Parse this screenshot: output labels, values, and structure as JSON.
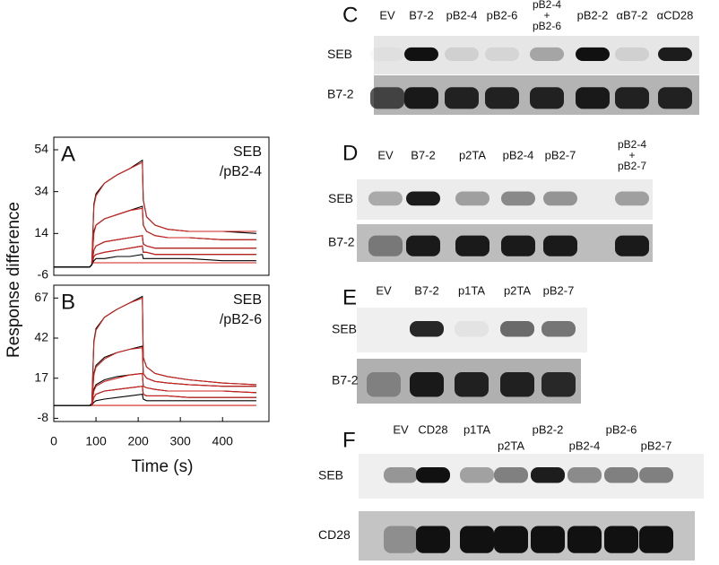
{
  "chart_data": [
    {
      "type": "line",
      "panel_label": "A",
      "annotation": [
        "SEB",
        "/pB2-4"
      ],
      "x": [
        0,
        85,
        90,
        95,
        100,
        120,
        150,
        180,
        210,
        212,
        220,
        240,
        270,
        320,
        400,
        480
      ],
      "xlim": [
        0,
        510
      ],
      "ylim": [
        -6,
        60
      ],
      "yticks": [
        -6,
        14,
        34,
        54
      ],
      "series": [
        {
          "color": "#000000",
          "values": [
            -2,
            -2,
            -1,
            28,
            33,
            38,
            42,
            45,
            49,
            30,
            22,
            18,
            16,
            15,
            15,
            14
          ]
        },
        {
          "color": "#000000",
          "values": [
            -2,
            -2,
            -1,
            15,
            18,
            21,
            23,
            25,
            27,
            18,
            15,
            13,
            12,
            12,
            11,
            11
          ]
        },
        {
          "color": "#000000",
          "values": [
            -2,
            -2,
            -1,
            6,
            8,
            10,
            11,
            12,
            13,
            9,
            8,
            7,
            7,
            7,
            7,
            7
          ]
        },
        {
          "color": "#000000",
          "values": [
            -2,
            -2,
            -1,
            3,
            4,
            5,
            6,
            7,
            8,
            5,
            5,
            4,
            4,
            4,
            4,
            4
          ]
        },
        {
          "color": "#000000",
          "values": [
            -2,
            -2,
            -1,
            1,
            2,
            2,
            3,
            3,
            4,
            2,
            2,
            2,
            2,
            2,
            1,
            1
          ]
        },
        {
          "color": "#d0201c",
          "values": [
            null,
            null,
            0,
            27,
            32,
            38,
            42,
            45,
            48,
            30,
            22,
            18,
            16,
            15,
            15,
            15
          ]
        },
        {
          "color": "#d0201c",
          "values": [
            null,
            null,
            0,
            14,
            18,
            21,
            23,
            25,
            26,
            18,
            15,
            13,
            12,
            12,
            11,
            11
          ]
        },
        {
          "color": "#d0201c",
          "values": [
            null,
            null,
            0,
            6,
            8,
            10,
            11,
            12,
            13,
            9,
            8,
            7,
            7,
            7,
            7,
            7
          ]
        },
        {
          "color": "#d0201c",
          "values": [
            null,
            null,
            0,
            3,
            4,
            5,
            6,
            7,
            8,
            5,
            5,
            4,
            4,
            4,
            4,
            4
          ]
        },
        {
          "color": "#d0201c",
          "values": [
            null,
            null,
            0,
            0,
            0,
            0,
            0,
            0,
            0,
            0,
            0,
            0,
            0,
            0,
            0,
            0
          ]
        }
      ]
    },
    {
      "type": "line",
      "panel_label": "B",
      "annotation": [
        "SEB",
        "/pB2-6"
      ],
      "x": [
        0,
        85,
        90,
        95,
        100,
        120,
        150,
        180,
        210,
        212,
        220,
        240,
        270,
        320,
        400,
        480
      ],
      "xlim": [
        0,
        510
      ],
      "ylim": [
        -10,
        75
      ],
      "yticks": [
        -8,
        17,
        42,
        67
      ],
      "xticks": [
        0,
        100,
        200,
        300,
        400
      ],
      "series": [
        {
          "color": "#000000",
          "values": [
            0,
            0,
            1,
            40,
            48,
            55,
            60,
            64,
            68,
            30,
            24,
            20,
            18,
            16,
            14,
            13
          ]
        },
        {
          "color": "#000000",
          "values": [
            0,
            0,
            1,
            20,
            25,
            30,
            33,
            35,
            37,
            20,
            17,
            15,
            14,
            13,
            12,
            12
          ]
        },
        {
          "color": "#000000",
          "values": [
            0,
            0,
            1,
            10,
            13,
            16,
            18,
            19,
            20,
            12,
            11,
            10,
            9,
            9,
            9,
            8
          ]
        },
        {
          "color": "#000000",
          "values": [
            0,
            0,
            1,
            5,
            7,
            9,
            10,
            11,
            12,
            7,
            6,
            6,
            6,
            5,
            5,
            5
          ]
        },
        {
          "color": "#000000",
          "values": [
            0,
            0,
            0,
            2,
            3,
            4,
            5,
            6,
            7,
            4,
            3,
            3,
            3,
            3,
            3,
            3
          ]
        },
        {
          "color": "#d0201c",
          "values": [
            null,
            null,
            0,
            39,
            47,
            55,
            60,
            64,
            67,
            30,
            24,
            20,
            18,
            16,
            14,
            13
          ]
        },
        {
          "color": "#d0201c",
          "values": [
            null,
            null,
            0,
            19,
            24,
            29,
            33,
            35,
            36,
            20,
            17,
            15,
            14,
            13,
            12,
            12
          ]
        },
        {
          "color": "#d0201c",
          "values": [
            null,
            null,
            0,
            9,
            12,
            15,
            17,
            19,
            20,
            12,
            11,
            10,
            9,
            9,
            9,
            8
          ]
        },
        {
          "color": "#d0201c",
          "values": [
            null,
            null,
            0,
            5,
            7,
            9,
            10,
            11,
            12,
            7,
            6,
            6,
            6,
            5,
            5,
            5
          ]
        },
        {
          "color": "#d0201c",
          "values": [
            null,
            null,
            0,
            0,
            0,
            0,
            0,
            0,
            0,
            0,
            0,
            0,
            0,
            0,
            0,
            0
          ]
        }
      ]
    }
  ],
  "axis_labels": {
    "x": "Time (s)",
    "y": "Response difference"
  },
  "blots": [
    {
      "label": "C",
      "lanes": [
        [
          "EV"
        ],
        [
          "B7-2"
        ],
        [
          "pB2-4"
        ],
        [
          "pB2-6"
        ],
        [
          "pB2-4",
          "+",
          "pB2-6"
        ],
        [
          "pB2-2"
        ],
        [
          "αB7-2"
        ],
        [
          "αCD28"
        ]
      ],
      "rows": [
        "SEB",
        "B7-2"
      ]
    },
    {
      "label": "D",
      "lanes": [
        [
          "EV"
        ],
        [
          "B7-2"
        ],
        [
          "p2TA"
        ],
        [
          "pB2-4"
        ],
        [
          "pB2-7"
        ],
        [
          "pB2-4",
          "+",
          "pB2-7"
        ]
      ],
      "rows": [
        "SEB",
        "B7-2"
      ]
    },
    {
      "label": "E",
      "lanes": [
        [
          "EV"
        ],
        [
          "B7-2"
        ],
        [
          "p1TA"
        ],
        [
          "p2TA"
        ],
        [
          "pB2-7"
        ]
      ],
      "rows": [
        "SEB",
        "B7-2"
      ]
    },
    {
      "label": "F",
      "lanes": [
        [
          "EV"
        ],
        [
          "CD28"
        ],
        [
          "p1TA"
        ],
        [
          "p2TA"
        ],
        [
          "pB2-2"
        ],
        [
          "pB2-4"
        ],
        [
          "pB2-6"
        ],
        [
          "pB2-7"
        ]
      ],
      "rows": [
        "SEB",
        "CD28"
      ]
    }
  ]
}
